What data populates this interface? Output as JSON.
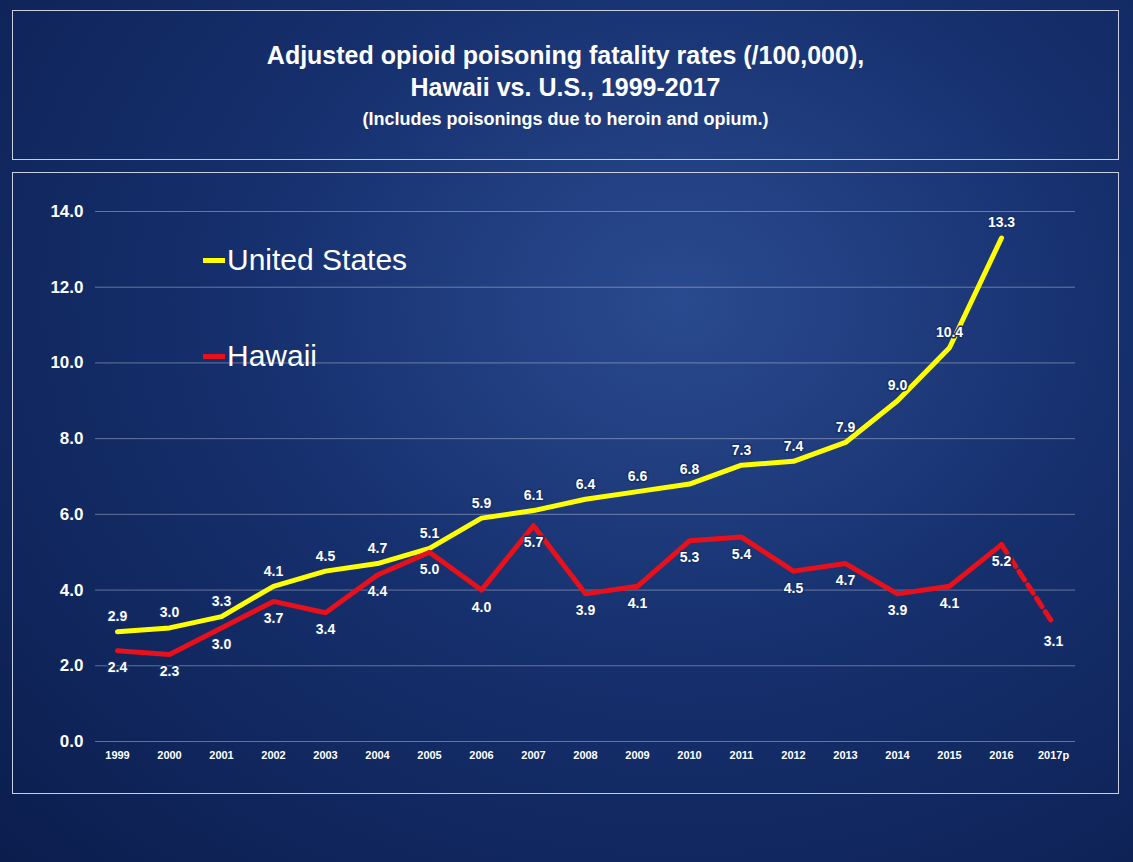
{
  "chart_data": {
    "type": "line",
    "title": "Adjusted opioid poisoning fatality rates (/100,000), Hawaii vs. U.S., 1999-2017",
    "subtitle": "(Includes poisonings due to heroin and opium.)",
    "categories": [
      "1999",
      "2000",
      "2001",
      "2002",
      "2003",
      "2004",
      "2005",
      "2006",
      "2007",
      "2008",
      "2009",
      "2010",
      "2011",
      "2012",
      "2013",
      "2014",
      "2015",
      "2016",
      "2017p"
    ],
    "series": [
      {
        "name": "United States",
        "color": "#ffff00",
        "values": [
          2.9,
          3.0,
          3.3,
          4.1,
          4.5,
          4.7,
          5.1,
          5.9,
          6.1,
          6.4,
          6.6,
          6.8,
          7.3,
          7.4,
          7.9,
          9.0,
          10.4,
          13.3,
          null
        ],
        "value_labels": [
          "2.9",
          "3.0",
          "3.3",
          "4.1",
          "4.5",
          "4.7",
          "5.1",
          "5.9",
          "6.1",
          "6.4",
          "6.6",
          "6.8",
          "7.3",
          "7.4",
          "7.9",
          "9.0",
          "10.4",
          "13.3",
          null
        ]
      },
      {
        "name": "Hawaii",
        "color": "#e8101a",
        "values": [
          2.4,
          2.3,
          3.0,
          3.7,
          3.4,
          4.4,
          5.0,
          4.0,
          5.7,
          3.9,
          4.1,
          5.3,
          5.4,
          4.5,
          4.7,
          3.9,
          4.1,
          5.2,
          3.1
        ],
        "value_labels": [
          "2.4",
          "2.3",
          "3.0",
          "3.7",
          "3.4",
          "4.4",
          "5.0",
          "4.0",
          "5.7",
          "3.9",
          "4.1",
          "5.3",
          "5.4",
          "4.5",
          "4.7",
          "3.9",
          "4.1",
          "5.2",
          "3.1"
        ]
      }
    ],
    "ylim": [
      0,
      14
    ],
    "yticks": [
      {
        "value": 0,
        "label": "0.0"
      },
      {
        "value": 2,
        "label": "2.0"
      },
      {
        "value": 4,
        "label": "4.0"
      },
      {
        "value": 6,
        "label": "6.0"
      },
      {
        "value": 8,
        "label": "8.0"
      },
      {
        "value": 10,
        "label": "10.0"
      },
      {
        "value": 12,
        "label": "12.0"
      },
      {
        "value": 14,
        "label": "14.0"
      }
    ],
    "grid": true,
    "legend": "upper left",
    "data_labels": true
  }
}
